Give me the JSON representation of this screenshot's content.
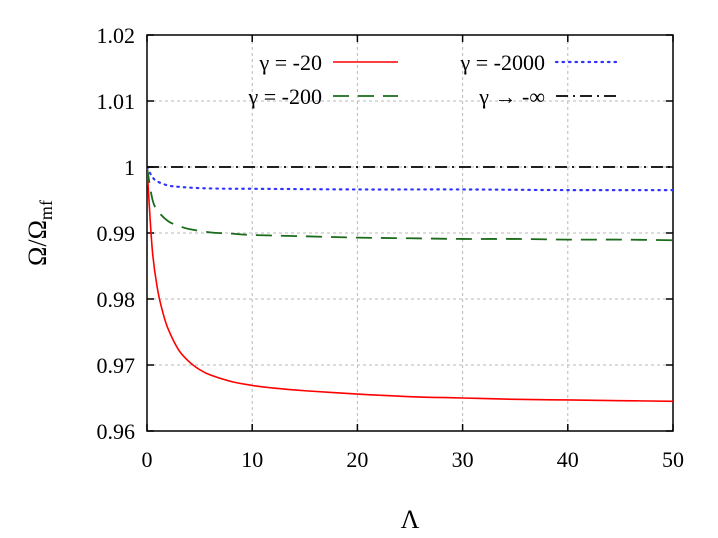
{
  "chart_data": {
    "type": "line",
    "xlabel": "Λ",
    "ylabel_main": "Ω/Ω",
    "ylabel_sub": "mf",
    "xlim": [
      0,
      50
    ],
    "ylim": [
      0.96,
      1.02
    ],
    "xticks": [
      0,
      10,
      20,
      30,
      40,
      50
    ],
    "xtick_labels": [
      "0",
      "10",
      "20",
      "30",
      "40",
      "50"
    ],
    "yticks": [
      0.96,
      0.97,
      0.98,
      0.99,
      1.0,
      1.01,
      1.02
    ],
    "ytick_labels": [
      "0.96",
      "0.97",
      "0.98",
      "0.99",
      "1",
      "1.01",
      "1.02"
    ],
    "grid": true,
    "legend_position": "top",
    "series": [
      {
        "name": "γ = -20",
        "color": "#ff0000",
        "dash": "solid",
        "x": [
          0,
          0.5,
          1,
          1.5,
          2,
          3,
          4,
          5,
          6,
          8,
          10,
          12,
          15,
          20,
          25,
          30,
          35,
          40,
          45,
          50
        ],
        "y": [
          1.0,
          0.9875,
          0.9815,
          0.978,
          0.9755,
          0.9723,
          0.9705,
          0.9693,
          0.9685,
          0.9675,
          0.9669,
          0.9665,
          0.9661,
          0.9656,
          0.9652,
          0.965,
          0.9648,
          0.9647,
          0.9646,
          0.9645
        ]
      },
      {
        "name": "γ = -200",
        "color": "#1a6b1a",
        "dash": "long-dash",
        "x": [
          0,
          0.5,
          1,
          2,
          3,
          4,
          6,
          8,
          10,
          15,
          20,
          25,
          30,
          35,
          40,
          45,
          50
        ],
        "y": [
          1.0,
          0.9952,
          0.9934,
          0.9918,
          0.9911,
          0.9906,
          0.9901,
          0.9899,
          0.9897,
          0.9895,
          0.9893,
          0.9892,
          0.9891,
          0.9891,
          0.989,
          0.989,
          0.9889
        ]
      },
      {
        "name": "γ = -2000",
        "color": "#3333ff",
        "dash": "dotted",
        "x": [
          0,
          0.5,
          1,
          2,
          3,
          5,
          8,
          10,
          20,
          30,
          40,
          50
        ],
        "y": [
          1.0,
          0.9985,
          0.9978,
          0.9972,
          0.997,
          0.9968,
          0.9967,
          0.9967,
          0.9966,
          0.9966,
          0.9965,
          0.9965
        ]
      },
      {
        "name": "γ → -∞",
        "color": "#000000",
        "dash": "dash-dot",
        "x": [
          0,
          50
        ],
        "y": [
          1.0,
          1.0
        ]
      }
    ]
  }
}
